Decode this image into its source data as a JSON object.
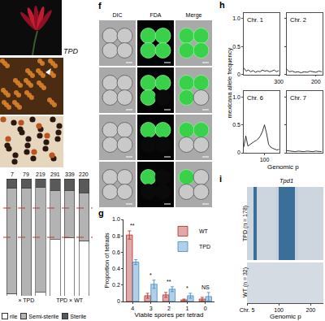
{
  "photos": {
    "label": "TPD"
  },
  "panel_f": {
    "panel": "f",
    "columns": [
      "DIC",
      "FDA",
      "Merge"
    ],
    "viable_spores": [
      4,
      3,
      2,
      1
    ]
  },
  "chart_data": [
    {
      "type": "bar",
      "stacked": true,
      "categories": [
        null,
        "× TPD",
        null,
        null,
        "TPD × WT",
        null
      ],
      "n": [
        7,
        79,
        219,
        291,
        339,
        220
      ],
      "series": [
        {
          "name": "rile",
          "color": "#ffffff",
          "values": [
            0.02,
            0,
            0.03,
            0.48,
            0.5,
            0.47
          ]
        },
        {
          "name": "Semi-sterile",
          "color": "#b3b3b3",
          "values": [
            0.9,
            0.92,
            0.9,
            0.42,
            0.4,
            0.41
          ]
        },
        {
          "name": "Sterile",
          "color": "#595959",
          "values": [
            0.08,
            0.08,
            0.07,
            0.1,
            0.1,
            0.12
          ]
        }
      ],
      "hlines": {
        "values": [
          0.75,
          0.5
        ],
        "color": "#c0392b",
        "line_style": "dashed"
      },
      "ylim": [
        0,
        1
      ],
      "yticks": [],
      "tick_labels": "x",
      "legend": "bottom"
    },
    {
      "type": "bar",
      "panel": "g",
      "categories": [
        "4",
        "3",
        "2",
        "1",
        "0"
      ],
      "xlabel": "Viable spores per tetrad",
      "ylabel": "Proportion of tetrads",
      "series": [
        {
          "name": "WT",
          "color": "#b22b26",
          "values": [
            0.81,
            0.07,
            0.08,
            0.02,
            0.03
          ],
          "error": [
            0.05,
            0.03,
            0.03,
            0.01,
            0.02
          ]
        },
        {
          "name": "TPD",
          "color": "#3b8ac4",
          "values": [
            0.48,
            0.21,
            0.15,
            0.07,
            0.06
          ],
          "error": [
            0.03,
            0.05,
            0.03,
            0.03,
            0.05
          ]
        }
      ],
      "significance": [
        "**",
        "*",
        "**",
        "*",
        "NS"
      ],
      "ylim": [
        0,
        1
      ],
      "yticks": [
        0,
        0.2,
        0.4,
        0.6,
        0.8,
        {
          "value": 1,
          "label": "1.0"
        }
      ],
      "legend": "top-right"
    },
    {
      "type": "line",
      "panel": "h",
      "ylabel": "mexicana allele frequency",
      "xlabel": "Genomic p",
      "color": "#000000",
      "ylim": [
        0,
        1.1
      ],
      "yticks": [
        0,
        0.5,
        {
          "value": 1,
          "label": "1.0"
        }
      ],
      "subplots": [
        {
          "title": "Chr. 1",
          "xlim": [
            0,
            310
          ],
          "xticks": [
            300
          ],
          "x": [
            0,
            20,
            40,
            60,
            80,
            100,
            120,
            140,
            160,
            180,
            200,
            220,
            240,
            260,
            280,
            300
          ],
          "values": [
            0.12,
            0.06,
            0.08,
            0.05,
            0.07,
            0.04,
            0.06,
            0.05,
            0.08,
            0.06,
            0.07,
            0.05,
            0.06,
            0.08,
            0.05,
            0.07
          ]
        },
        {
          "title": "Chr. 2",
          "xlim": [
            0,
            245
          ],
          "xticks": [
            200
          ],
          "x": [
            0,
            20,
            40,
            60,
            80,
            100,
            120,
            140,
            160,
            180,
            200,
            220,
            240
          ],
          "values": [
            0.1,
            0.05,
            0.06,
            0.04,
            0.05,
            0.03,
            0.05,
            0.04,
            0.06,
            0.05,
            0.04,
            0.06,
            0.05
          ]
        },
        {
          "title": "Chr. 6",
          "xlim": [
            0,
            175
          ],
          "xticks": [
            100
          ],
          "x": [
            0,
            10,
            20,
            30,
            40,
            50,
            60,
            70,
            80,
            90,
            100,
            110,
            120,
            130,
            140,
            150,
            160,
            170
          ],
          "values": [
            0.1,
            0.3,
            0.12,
            0.15,
            0.18,
            0.2,
            0.22,
            0.25,
            0.3,
            0.38,
            0.5,
            0.35,
            0.15,
            0.1,
            0.08,
            0.06,
            0.05,
            0.06
          ]
        },
        {
          "title": "Chr. 7",
          "xlim": [
            0,
            185
          ],
          "xticks": [],
          "x": [
            0,
            15,
            30,
            45,
            60,
            75,
            90,
            105,
            120,
            135,
            150,
            165,
            180
          ],
          "values": [
            0.04,
            0.03,
            0.02,
            0.02,
            0.03,
            0.02,
            0.02,
            0.03,
            0.02,
            0.02,
            0.03,
            0.02,
            0.02
          ]
        }
      ]
    },
    {
      "type": "heatmap",
      "panel": "i",
      "xlabel": "Genomic p",
      "color": "#3c6e9a",
      "bins": [
        0,
        10,
        20,
        30,
        40,
        50,
        60,
        70,
        80,
        90,
        100,
        110,
        120,
        130,
        140,
        150,
        160,
        170,
        180,
        190,
        200,
        210,
        220,
        230,
        240
      ],
      "xlim": [
        0,
        240
      ],
      "xticks": [
        {
          "value": 0,
          "label": "Chr. 5"
        },
        100,
        200
      ],
      "zlim": [
        0,
        1
      ],
      "rows": [
        {
          "name": "TPD (n = 178)",
          "values": [
            0.1,
            0.1,
            1,
            0.1,
            0.1,
            0.1,
            0.1,
            0.1,
            0.1,
            0.15,
            1,
            1,
            1,
            1,
            1,
            0.15,
            0.1,
            0.1,
            0.1,
            0.1,
            0.1,
            0.1,
            0.1,
            0.1
          ]
        },
        {
          "name": "WT (n = 32)",
          "values": [
            0.05,
            0.05,
            0.05,
            0.05,
            0.05,
            0.05,
            0.05,
            0.05,
            0.05,
            0.05,
            0.05,
            0.05,
            0.05,
            0.05,
            0.05,
            0.05,
            0.05,
            0.05,
            0.05,
            0.05,
            0.05,
            0.05,
            0.05,
            0.05
          ]
        }
      ],
      "annotations": [
        {
          "x": 125,
          "text": "Tpd1"
        }
      ]
    }
  ]
}
